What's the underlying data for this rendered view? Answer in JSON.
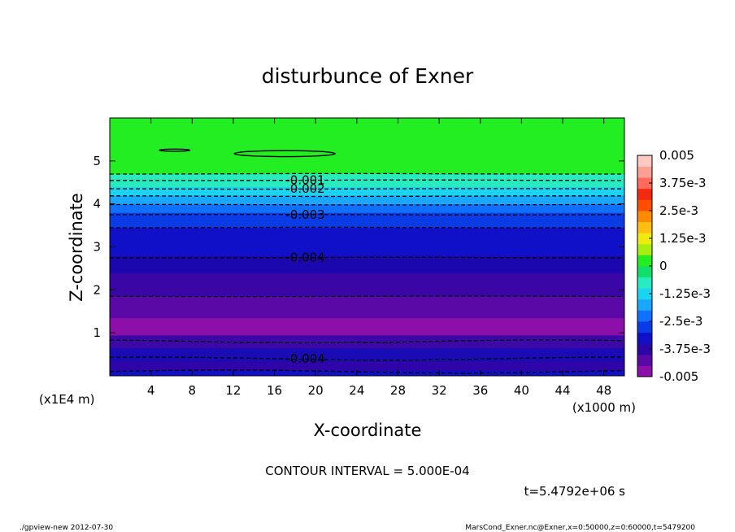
{
  "chart_data": {
    "type": "contour",
    "title": "disturbunce of Exner",
    "xlabel": "X-coordinate",
    "ylabel": "Z-coordinate",
    "x_unit_note": "(x1000 m)",
    "y_unit_note": "(x1E4 m)",
    "xlim": [
      0,
      50
    ],
    "ylim": [
      0,
      6
    ],
    "x_ticks": [
      4,
      8,
      12,
      16,
      20,
      24,
      28,
      32,
      36,
      40,
      44,
      48
    ],
    "y_ticks": [
      1,
      2,
      3,
      4,
      5
    ],
    "contour_interval_text": "CONTOUR INTERVAL = 5.000E-04",
    "time_text": "t=5.4792e+06 s",
    "contour_labels": [
      {
        "text": "-0.001",
        "x": 19,
        "z": 4.55
      },
      {
        "text": "-0.002",
        "x": 19,
        "z": 4.35
      },
      {
        "text": "-0.003",
        "x": 19,
        "z": 3.75
      },
      {
        "text": "-0.004",
        "x": 19,
        "z": 2.75
      },
      {
        "text": "-0.004",
        "x": 19,
        "z": 0.4
      }
    ],
    "colorbar": {
      "range": [
        -0.005,
        0.005
      ],
      "tick_labels": [
        "0.005",
        "3.75e-3",
        "2.5e-3",
        "1.25e-3",
        "0",
        "-1.25e-3",
        "-2.5e-3",
        "-3.75e-3",
        "-0.005"
      ],
      "colors": [
        "#8b0fa8",
        "#5a09a6",
        "#2e05a8",
        "#1010c8",
        "#0a3ce6",
        "#1070ff",
        "#1aa8ff",
        "#1ad4f0",
        "#28ecc0",
        "#10e06a",
        "#22ee22",
        "#a8ee10",
        "#eeea10",
        "#ffbe10",
        "#ff8a00",
        "#ff4e00",
        "#f42a10",
        "#ff6a5a",
        "#ff9e92",
        "#ffc8c0"
      ]
    },
    "field_bands": [
      {
        "z0": 0.0,
        "z1": 0.12,
        "color": "#1010c8"
      },
      {
        "z0": 0.12,
        "z1": 0.35,
        "color": "#2e05a8"
      },
      {
        "z0": 0.35,
        "z1": 0.65,
        "color": "#1a0cb4"
      },
      {
        "z0": 0.65,
        "z1": 0.95,
        "color": "#3c08a6"
      },
      {
        "z0": 0.95,
        "z1": 1.35,
        "color": "#8b0fa8"
      },
      {
        "z0": 1.35,
        "z1": 1.85,
        "color": "#5a09a6"
      },
      {
        "z0": 1.85,
        "z1": 2.4,
        "color": "#3a07a6"
      },
      {
        "z0": 2.4,
        "z1": 2.8,
        "color": "#1c06ae"
      },
      {
        "z0": 2.8,
        "z1": 3.45,
        "color": "#1010c8"
      },
      {
        "z0": 3.45,
        "z1": 3.8,
        "color": "#0a3ce6"
      },
      {
        "z0": 3.8,
        "z1": 4.0,
        "color": "#1070ff"
      },
      {
        "z0": 4.0,
        "z1": 4.2,
        "color": "#1aa8ff"
      },
      {
        "z0": 4.2,
        "z1": 4.4,
        "color": "#1ad4f0"
      },
      {
        "z0": 4.4,
        "z1": 4.7,
        "color": "#28ecc0"
      },
      {
        "z0": 4.7,
        "z1": 6.0,
        "color": "#22ee22"
      }
    ],
    "dashed_levels_z": [
      0.1,
      0.4,
      0.8,
      1.85,
      2.75,
      3.45,
      3.75,
      3.98,
      4.18,
      4.35,
      4.55,
      4.7
    ],
    "closed_contours": [
      {
        "x_center": 6.3,
        "z_center": 5.25,
        "half_width": 1.5,
        "half_height": 0.025
      },
      {
        "x_center": 17.0,
        "z_center": 5.17,
        "half_width": 4.9,
        "half_height": 0.07
      }
    ]
  },
  "footer": {
    "left": "./gpview-new   2012-07-30",
    "right": "MarsCond_Exner.nc@Exner,x=0:50000,z=0:60000,t=5479200"
  }
}
